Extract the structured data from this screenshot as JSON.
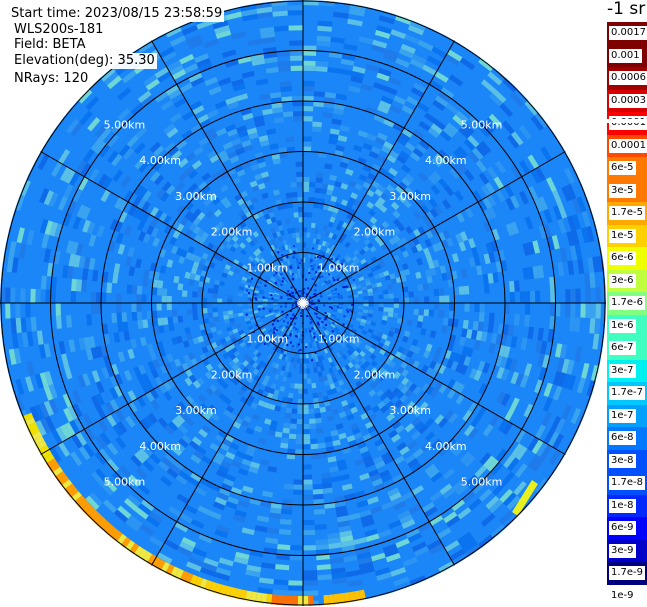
{
  "header": {
    "start_time": "Start time: 2023/08/15 23:58:59",
    "radar": "WLS200s-181",
    "field": "Field: BETA",
    "elevation": "Elevation(deg): 35.30",
    "nrays": "NRays: 120"
  },
  "colorbar": {
    "unit": "-1 sr",
    "labels": [
      "1e-9",
      "1.7e-9",
      "3e-9",
      "6e-9",
      "1e-8",
      "1.7e-8",
      "3e-8",
      "6e-8",
      "1e-7",
      "1.7e-7",
      "3e-7",
      "6e-7",
      "1e-6",
      "1.7e-6",
      "3e-6",
      "6e-6",
      "1e-5",
      "1.7e-5",
      "3e-5",
      "6e-5",
      "0.0001",
      "0.00017",
      "0.0003",
      "0.0006",
      "0.001",
      "0.0017"
    ],
    "colors": [
      "#ffffff",
      "#00007f",
      "#0000c8",
      "#0000ff",
      "#0028ff",
      "#0050ff",
      "#0078ff",
      "#00a0ff",
      "#00c8ff",
      "#00f0f0",
      "#40ffc0",
      "#80ff80",
      "#c0ff40",
      "#f0ff00",
      "#ffd000",
      "#ffa800",
      "#ff7800",
      "#ff4800",
      "#ff0000",
      "#d80000",
      "#a00000",
      "#7f0000"
    ]
  },
  "range_rings": {
    "labels": [
      "1.00km",
      "2.00km",
      "3.00km",
      "4.00km",
      "5.00km"
    ],
    "ring_values_km": [
      1,
      2,
      3,
      4,
      5,
      6
    ]
  },
  "colors": {
    "background": "#ffffff",
    "field_base": "#1a86f7",
    "grid": "#000000",
    "ring_label": "#ffffff"
  }
}
